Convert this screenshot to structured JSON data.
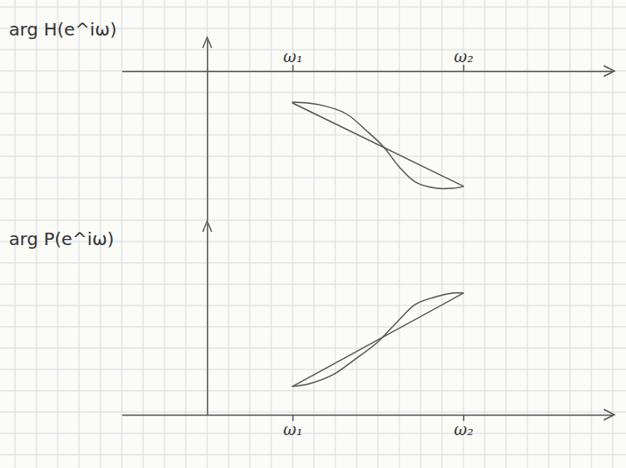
{
  "chart_data": [
    {
      "type": "line",
      "ylabel": "arg H(e^iω)",
      "color": "#555555",
      "xlim": [
        -4,
        19
      ],
      "xticks": [
        {
          "value": 4,
          "label": "ω₁"
        },
        {
          "value": 12,
          "label": "ω₂"
        }
      ],
      "ylim": [
        -7,
        1.5
      ],
      "yticks": [],
      "tick_labels": "x",
      "grid": false,
      "series": [
        {
          "x": [
            4,
            12
          ],
          "values": [
            -1.5,
            -5.4
          ]
        },
        {
          "x": [
            4,
            5.25,
            6.5,
            7.5,
            8.25,
            9,
            9.75,
            10.75,
            11.5,
            12
          ],
          "values": [
            -1.46,
            -1.58,
            -2,
            -2.83,
            -3.54,
            -4.5,
            -5.2,
            -5.5,
            -5.5,
            -5.42
          ]
        }
      ]
    },
    {
      "type": "line",
      "ylabel": "arg P(e^iω)",
      "color": "#555555",
      "xlim": [
        -4,
        19
      ],
      "xticks": [
        {
          "value": 4,
          "label": "ω₁"
        },
        {
          "value": 12,
          "label": "ω₂"
        }
      ],
      "ylim": [
        0,
        9
      ],
      "yticks": [],
      "tick_labels": "x",
      "grid": false,
      "series": [
        {
          "x": [
            4,
            12
          ],
          "values": [
            1.33,
            5.7
          ]
        },
        {
          "x": [
            4,
            4.8,
            5.9,
            6.9,
            8,
            9,
            9.75,
            10.6,
            11.5,
            12
          ],
          "values": [
            1.33,
            1.46,
            1.88,
            2.58,
            3.42,
            4.46,
            5.17,
            5.5,
            5.71,
            5.71
          ]
        }
      ]
    }
  ]
}
